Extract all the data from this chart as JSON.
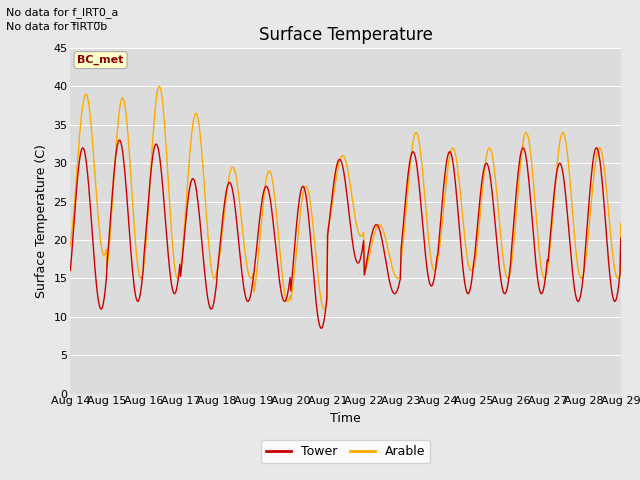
{
  "title": "Surface Temperature",
  "ylabel": "Surface Temperature (C)",
  "xlabel": "Time",
  "ylim": [
    0,
    45
  ],
  "yticks": [
    0,
    5,
    10,
    15,
    20,
    25,
    30,
    35,
    40,
    45
  ],
  "xticklabels": [
    "Aug 14",
    "Aug 15",
    "Aug 16",
    "Aug 17",
    "Aug 18",
    "Aug 19",
    "Aug 20",
    "Aug 21",
    "Aug 22",
    "Aug 23",
    "Aug 24",
    "Aug 25",
    "Aug 26",
    "Aug 27",
    "Aug 28",
    "Aug 29"
  ],
  "no_data_line1": "No data for f_IRT0_a",
  "no_data_line2": "No data for f̅IRT0̅b",
  "bc_met_label": "BC_met",
  "fig_bg_color": "#e8e8e8",
  "plot_bg_color": "#dcdcdc",
  "tower_color": "#cc0000",
  "arable_color": "#ffaa00",
  "legend_labels": [
    "Tower",
    "Arable"
  ],
  "title_fontsize": 12,
  "axis_label_fontsize": 9,
  "tick_fontsize": 8,
  "nodata_fontsize": 8,
  "tower_peak": [
    32,
    33,
    32.5,
    28,
    27.5,
    27,
    27,
    30.5,
    22,
    31.5,
    31.5,
    30,
    32,
    30,
    32,
    21
  ],
  "tower_trough": [
    11,
    12,
    13,
    11,
    12,
    12,
    8.5,
    17,
    13,
    14,
    13,
    13,
    13,
    12,
    12,
    20
  ],
  "arable_peak": [
    39,
    38.5,
    40,
    36.5,
    29.5,
    29,
    27,
    31,
    22,
    34,
    32,
    32,
    34,
    34,
    32,
    24
  ],
  "arable_trough": [
    18,
    15,
    15,
    15,
    15,
    12,
    11,
    20.5,
    15,
    16,
    16,
    15,
    15,
    15,
    15,
    22
  ],
  "tower_phase_shift": 0.083,
  "arable_phase_shift": 0.0
}
